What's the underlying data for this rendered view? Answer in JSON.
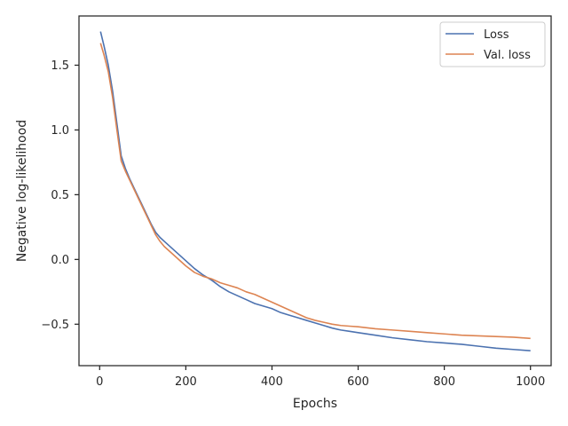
{
  "chart_data": {
    "type": "line",
    "title": "",
    "xlabel": "Epochs",
    "ylabel": "Negative log-likelihood",
    "xlim": [
      -48,
      1048
    ],
    "ylim": [
      -0.82,
      1.88
    ],
    "x_ticks": [
      0,
      200,
      400,
      600,
      800,
      1000
    ],
    "x_tick_labels": [
      "0",
      "200",
      "400",
      "600",
      "800",
      "1000"
    ],
    "y_ticks": [
      -0.5,
      0.0,
      0.5,
      1.0,
      1.5
    ],
    "y_tick_labels": [
      "−0.5",
      "0.0",
      "0.5",
      "1.0",
      "1.5"
    ],
    "grid": false,
    "legend_position": "top-right",
    "series": [
      {
        "name": "Loss",
        "color": "#4c72b0",
        "x": [
          2,
          10,
          20,
          30,
          40,
          50,
          60,
          70,
          80,
          90,
          100,
          110,
          120,
          130,
          140,
          150,
          160,
          170,
          180,
          190,
          200,
          220,
          240,
          260,
          280,
          300,
          320,
          340,
          360,
          380,
          400,
          420,
          440,
          460,
          480,
          500,
          520,
          540,
          560,
          580,
          600,
          640,
          680,
          720,
          760,
          800,
          840,
          880,
          920,
          960,
          1000
        ],
        "y": [
          1.76,
          1.65,
          1.5,
          1.3,
          1.05,
          0.8,
          0.7,
          0.62,
          0.55,
          0.48,
          0.41,
          0.34,
          0.27,
          0.21,
          0.17,
          0.14,
          0.11,
          0.08,
          0.05,
          0.02,
          -0.01,
          -0.07,
          -0.12,
          -0.16,
          -0.21,
          -0.25,
          -0.28,
          -0.31,
          -0.34,
          -0.36,
          -0.38,
          -0.41,
          -0.43,
          -0.45,
          -0.47,
          -0.49,
          -0.51,
          -0.53,
          -0.545,
          -0.555,
          -0.565,
          -0.585,
          -0.605,
          -0.62,
          -0.635,
          -0.645,
          -0.655,
          -0.67,
          -0.685,
          -0.695,
          -0.705
        ]
      },
      {
        "name": "Val. loss",
        "color": "#dd8452",
        "x": [
          2,
          10,
          20,
          30,
          40,
          50,
          60,
          70,
          80,
          90,
          100,
          110,
          120,
          130,
          140,
          150,
          160,
          170,
          180,
          190,
          200,
          220,
          240,
          260,
          280,
          300,
          320,
          340,
          360,
          380,
          400,
          420,
          440,
          460,
          480,
          500,
          520,
          540,
          560,
          580,
          600,
          640,
          680,
          720,
          760,
          800,
          840,
          880,
          920,
          960,
          1000
        ],
        "y": [
          1.67,
          1.58,
          1.45,
          1.25,
          1.0,
          0.76,
          0.68,
          0.61,
          0.54,
          0.47,
          0.4,
          0.33,
          0.26,
          0.19,
          0.14,
          0.1,
          0.07,
          0.04,
          0.01,
          -0.02,
          -0.05,
          -0.1,
          -0.13,
          -0.15,
          -0.18,
          -0.2,
          -0.22,
          -0.25,
          -0.27,
          -0.3,
          -0.33,
          -0.36,
          -0.39,
          -0.42,
          -0.45,
          -0.47,
          -0.485,
          -0.5,
          -0.51,
          -0.515,
          -0.52,
          -0.535,
          -0.545,
          -0.555,
          -0.565,
          -0.575,
          -0.585,
          -0.59,
          -0.595,
          -0.6,
          -0.61
        ]
      }
    ]
  }
}
